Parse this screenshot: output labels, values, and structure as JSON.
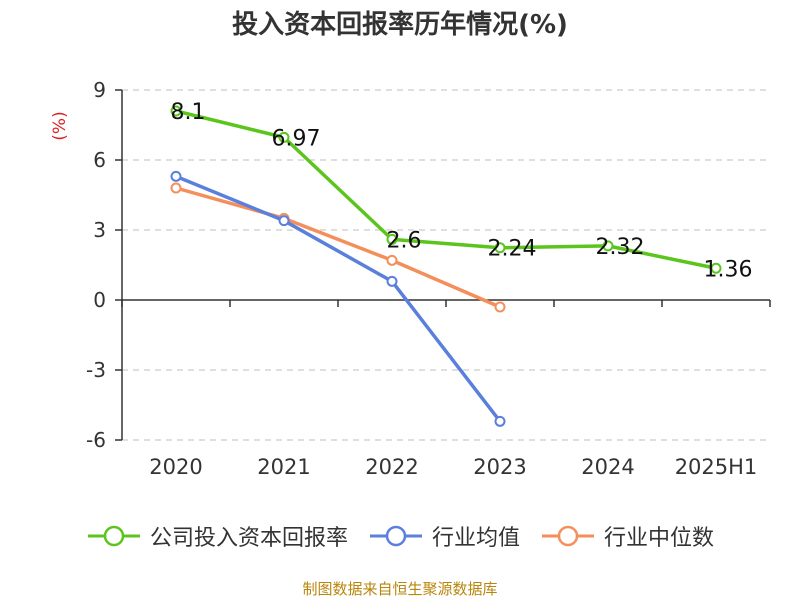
{
  "title": "投入资本回报率历年情况(%)",
  "source": "制图数据来自恒生聚源数据库",
  "colors": {
    "company": "#5cc51d",
    "industry_avg": "#5b80dc",
    "industry_median": "#f48f5b",
    "axis": "#333333",
    "grid": "#cccccc",
    "ylabel": "#e02020",
    "source": "#b8860b"
  },
  "chart_data": {
    "type": "line",
    "title": "投入资本回报率历年情况(%)",
    "xlabel": "",
    "ylabel": "(%)",
    "ylim": [
      -6,
      9
    ],
    "yticks": [
      9,
      6,
      3,
      0,
      -3,
      -6
    ],
    "grid": true,
    "legend_position": "bottom",
    "categories": [
      "2020",
      "2021",
      "2022",
      "2023",
      "2024",
      "2025H1"
    ],
    "series": [
      {
        "name": "公司投入资本回报率",
        "color_key": "company",
        "values": [
          8.1,
          6.97,
          2.6,
          2.24,
          2.32,
          1.36
        ],
        "labels": [
          "8.1",
          "6.97",
          "2.6",
          "2.24",
          "2.32",
          "1.36"
        ]
      },
      {
        "name": "行业均值",
        "color_key": "industry_avg",
        "values": [
          5.3,
          3.4,
          0.8,
          -5.2,
          null,
          null
        ]
      },
      {
        "name": "行业中位数",
        "color_key": "industry_median",
        "values": [
          4.8,
          3.5,
          1.7,
          -0.3,
          null,
          null
        ]
      }
    ]
  }
}
